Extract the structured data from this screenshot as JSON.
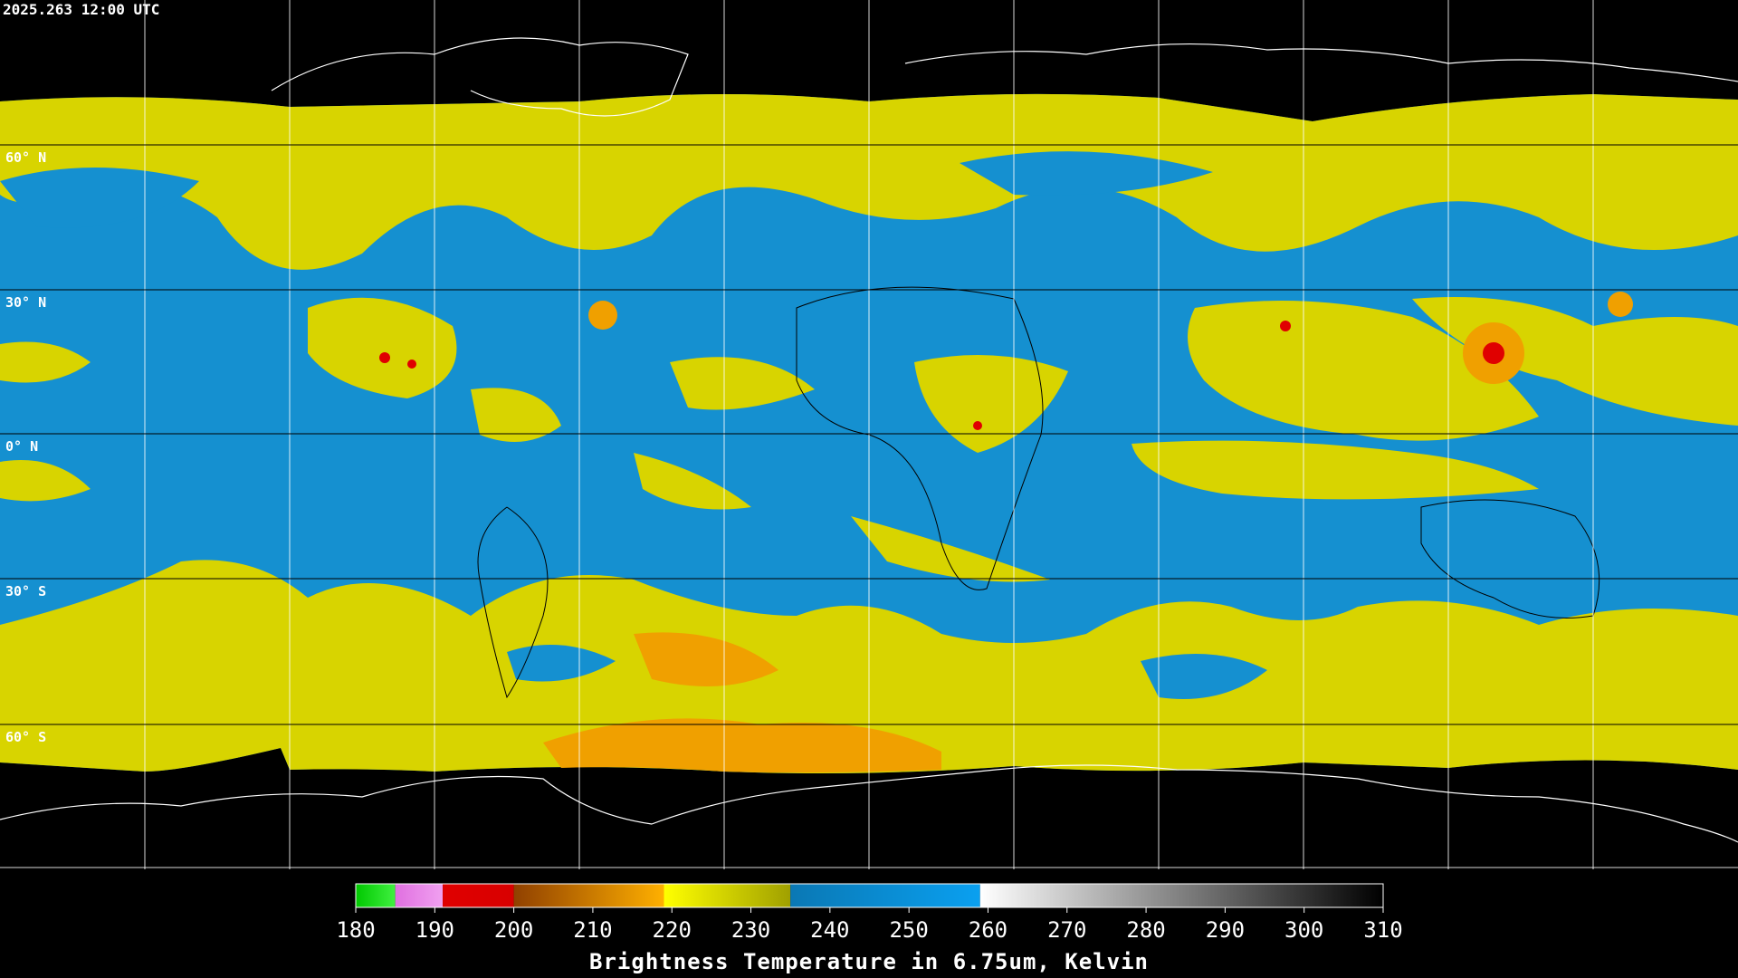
{
  "timestamp": "2025.263 12:00 UTC",
  "lat_labels": [
    "60° N",
    "30° N",
    "0° N",
    "30° S",
    "60° S"
  ],
  "colorbar": {
    "label": "Brightness Temperature in 6.75um, Kelvin",
    "range": [
      180,
      310
    ],
    "ticks": [
      180,
      190,
      200,
      210,
      220,
      230,
      240,
      250,
      260,
      270,
      280,
      290,
      300,
      310
    ],
    "segments": [
      {
        "from": 180,
        "to": 185,
        "colors": [
          "#00c800",
          "#40f040"
        ]
      },
      {
        "from": 185,
        "to": 191,
        "colors": [
          "#e070e0",
          "#f0a0f0"
        ]
      },
      {
        "from": 191,
        "to": 200,
        "colors": [
          "#e00000",
          "#d80000"
        ]
      },
      {
        "from": 200,
        "to": 219,
        "colors": [
          "#904000",
          "#ffb000"
        ]
      },
      {
        "from": 219,
        "to": 235,
        "colors": [
          "#ffff00",
          "#a0a000"
        ]
      },
      {
        "from": 235,
        "to": 259,
        "colors": [
          "#0a78b4",
          "#0aa0f0"
        ]
      },
      {
        "from": 259,
        "to": 310,
        "colors": [
          "#ffffff",
          "#000000"
        ]
      }
    ]
  }
}
